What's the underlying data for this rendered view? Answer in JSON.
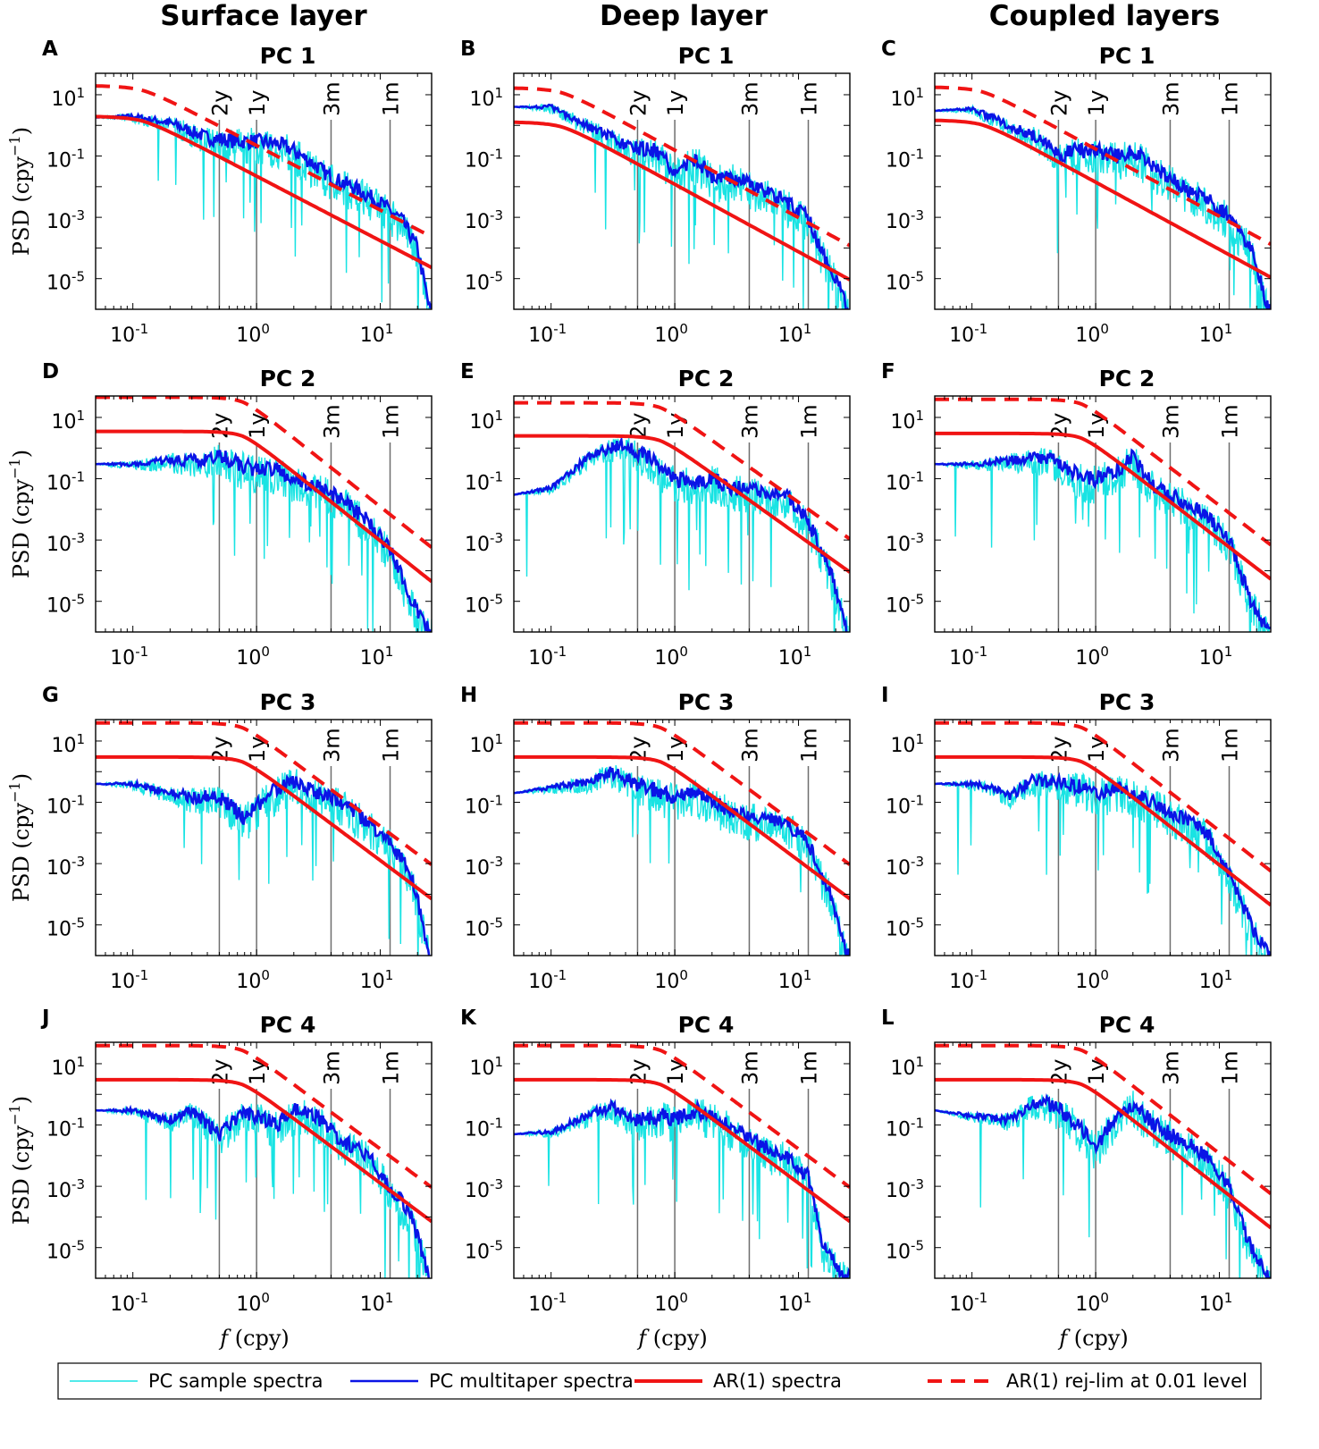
{
  "column_titles": [
    "Surface layer",
    "Deep layer",
    "Coupled layers"
  ],
  "legend": [
    {
      "label": "PC sample spectra",
      "color": "#19e3e3",
      "style": "thin"
    },
    {
      "label": "PC multitaper spectra",
      "color": "#0a14e6",
      "style": "solid"
    },
    {
      "label": "AR(1) spectra",
      "color": "#f01414",
      "style": "thick"
    },
    {
      "label": "AR(1) rej-lim at 0.01 level",
      "color": "#f01414",
      "style": "dashed"
    }
  ],
  "chart_data": {
    "type": "line",
    "xscale": "log",
    "yscale": "log",
    "xlim": [
      0.05,
      26
    ],
    "ylim": [
      1e-06,
      50
    ],
    "xlabel": "f (cpy)",
    "ylabel": "PSD (cpy^-1)",
    "xticks": [
      {
        "value": 0.1,
        "label": "10",
        "exp": "-1"
      },
      {
        "value": 1,
        "label": "10",
        "exp": "0"
      },
      {
        "value": 10,
        "label": "10",
        "exp": "1"
      }
    ],
    "yticks": [
      {
        "value": 10,
        "label": "10",
        "exp": "1"
      },
      {
        "value": 0.1,
        "label": "10",
        "exp": "-1"
      },
      {
        "value": 0.001,
        "label": "10",
        "exp": "-3"
      },
      {
        "value": 1e-05,
        "label": "10",
        "exp": "-5"
      }
    ],
    "period_markers": [
      {
        "label": "2y",
        "f": 0.5
      },
      {
        "label": "1y",
        "f": 1.0
      },
      {
        "label": "3m",
        "f": 4.0
      },
      {
        "label": "1m",
        "f": 12.0
      }
    ],
    "panels": [
      {
        "letter": "A",
        "title": "PC 1",
        "ar1_lowfreq": 2.0,
        "ar1_r": 0.05,
        "ar1_at_25": 2.5e-05,
        "lim_ratio": 10,
        "multitaper": [
          [
            0.05,
            1.8
          ],
          [
            0.1,
            2
          ],
          [
            0.2,
            1.2
          ],
          [
            0.4,
            0.4
          ],
          [
            0.7,
            0.3
          ],
          [
            1,
            0.3
          ],
          [
            1.5,
            0.25
          ],
          [
            2,
            0.15
          ],
          [
            3,
            0.05
          ],
          [
            4,
            0.02
          ],
          [
            6,
            0.01
          ],
          [
            10,
            0.003
          ],
          [
            15,
            0.0008
          ],
          [
            20,
            0.0001
          ],
          [
            25,
            1e-06
          ]
        ],
        "sample_scatter": 0.9
      },
      {
        "letter": "B",
        "title": "PC 1",
        "ar1_lowfreq": 1.3,
        "ar1_r": 0.05,
        "ar1_at_25": 1e-05,
        "lim_ratio": 13,
        "multitaper": [
          [
            0.05,
            4
          ],
          [
            0.1,
            4
          ],
          [
            0.2,
            1
          ],
          [
            0.4,
            0.2
          ],
          [
            0.7,
            0.15
          ],
          [
            1,
            0.03
          ],
          [
            1.5,
            0.08
          ],
          [
            2,
            0.02
          ],
          [
            3,
            0.02
          ],
          [
            5,
            0.008
          ],
          [
            8,
            0.003
          ],
          [
            12,
            0.001
          ],
          [
            15,
            0.0001
          ],
          [
            20,
            1e-05
          ],
          [
            25,
            1e-06
          ]
        ],
        "sample_scatter": 0.9
      },
      {
        "letter": "C",
        "title": "PC 1",
        "ar1_lowfreq": 1.5,
        "ar1_r": 0.05,
        "ar1_at_25": 1.2e-05,
        "lim_ratio": 12,
        "multitaper": [
          [
            0.05,
            3
          ],
          [
            0.1,
            3.5
          ],
          [
            0.2,
            1
          ],
          [
            0.4,
            0.3
          ],
          [
            0.5,
            0.1
          ],
          [
            0.7,
            0.15
          ],
          [
            1,
            0.15
          ],
          [
            1.5,
            0.1
          ],
          [
            2,
            0.15
          ],
          [
            3,
            0.04
          ],
          [
            5,
            0.01
          ],
          [
            8,
            0.004
          ],
          [
            12,
            0.001
          ],
          [
            18,
            0.0001
          ],
          [
            25,
            1e-06
          ]
        ],
        "sample_scatter": 0.9
      },
      {
        "letter": "D",
        "title": "PC 2",
        "ar1_lowfreq": 3.5,
        "ar1_r": 0.3,
        "ar1_at_25": 5e-05,
        "lim_ratio": 13,
        "multitaper": [
          [
            0.05,
            0.3
          ],
          [
            0.1,
            0.3
          ],
          [
            0.2,
            0.4
          ],
          [
            0.4,
            0.4
          ],
          [
            0.5,
            0.6
          ],
          [
            0.7,
            0.3
          ],
          [
            1,
            0.2
          ],
          [
            1.5,
            0.2
          ],
          [
            2,
            0.1
          ],
          [
            3,
            0.06
          ],
          [
            5,
            0.02
          ],
          [
            8,
            0.004
          ],
          [
            12,
            0.0005
          ],
          [
            18,
            1e-05
          ],
          [
            25,
            1e-06
          ]
        ],
        "sample_scatter": 0.9
      },
      {
        "letter": "E",
        "title": "PC 2",
        "ar1_lowfreq": 2.5,
        "ar1_r": 0.3,
        "ar1_at_25": 0.0001,
        "lim_ratio": 12,
        "multitaper": [
          [
            0.05,
            0.03
          ],
          [
            0.1,
            0.05
          ],
          [
            0.2,
            0.5
          ],
          [
            0.3,
            1
          ],
          [
            0.4,
            1.2
          ],
          [
            0.6,
            0.5
          ],
          [
            1,
            0.1
          ],
          [
            1.5,
            0.08
          ],
          [
            2,
            0.1
          ],
          [
            3,
            0.05
          ],
          [
            5,
            0.04
          ],
          [
            8,
            0.03
          ],
          [
            12,
            0.004
          ],
          [
            18,
            0.0001
          ],
          [
            25,
            1e-06
          ]
        ],
        "sample_scatter": 0.9
      },
      {
        "letter": "F",
        "title": "PC 2",
        "ar1_lowfreq": 3,
        "ar1_r": 0.3,
        "ar1_at_25": 6e-05,
        "lim_ratio": 13,
        "multitaper": [
          [
            0.05,
            0.3
          ],
          [
            0.1,
            0.3
          ],
          [
            0.2,
            0.4
          ],
          [
            0.4,
            0.5
          ],
          [
            0.6,
            0.2
          ],
          [
            0.8,
            0.1
          ],
          [
            1,
            0.1
          ],
          [
            1.5,
            0.2
          ],
          [
            2,
            0.5
          ],
          [
            3,
            0.05
          ],
          [
            5,
            0.02
          ],
          [
            8,
            0.006
          ],
          [
            12,
            0.001
          ],
          [
            18,
            1e-05
          ],
          [
            25,
            1e-06
          ]
        ],
        "sample_scatter": 0.9
      },
      {
        "letter": "G",
        "title": "PC 3",
        "ar1_lowfreq": 3,
        "ar1_r": 0.3,
        "ar1_at_25": 8e-05,
        "lim_ratio": 13,
        "multitaper": [
          [
            0.05,
            0.4
          ],
          [
            0.1,
            0.4
          ],
          [
            0.2,
            0.2
          ],
          [
            0.3,
            0.15
          ],
          [
            0.5,
            0.15
          ],
          [
            0.8,
            0.03
          ],
          [
            1,
            0.08
          ],
          [
            1.5,
            0.3
          ],
          [
            2,
            0.5
          ],
          [
            3,
            0.2
          ],
          [
            5,
            0.1
          ],
          [
            8,
            0.02
          ],
          [
            12,
            0.005
          ],
          [
            18,
            0.0004
          ],
          [
            25,
            1e-06
          ]
        ],
        "sample_scatter": 0.9
      },
      {
        "letter": "H",
        "title": "PC 3",
        "ar1_lowfreq": 3,
        "ar1_r": 0.3,
        "ar1_at_25": 8e-05,
        "lim_ratio": 13,
        "multitaper": [
          [
            0.05,
            0.2
          ],
          [
            0.1,
            0.3
          ],
          [
            0.2,
            0.5
          ],
          [
            0.3,
            1
          ],
          [
            0.5,
            0.4
          ],
          [
            0.8,
            0.2
          ],
          [
            1,
            0.15
          ],
          [
            1.5,
            0.2
          ],
          [
            2,
            0.1
          ],
          [
            3,
            0.05
          ],
          [
            5,
            0.03
          ],
          [
            8,
            0.02
          ],
          [
            12,
            0.005
          ],
          [
            18,
            0.0001
          ],
          [
            25,
            1e-06
          ]
        ],
        "sample_scatter": 0.9
      },
      {
        "letter": "I",
        "title": "PC 3",
        "ar1_lowfreq": 3,
        "ar1_r": 0.3,
        "ar1_at_25": 5e-05,
        "lim_ratio": 13,
        "multitaper": [
          [
            0.05,
            0.4
          ],
          [
            0.1,
            0.4
          ],
          [
            0.15,
            0.3
          ],
          [
            0.2,
            0.15
          ],
          [
            0.3,
            0.5
          ],
          [
            0.5,
            0.5
          ],
          [
            0.8,
            0.3
          ],
          [
            1,
            0.2
          ],
          [
            1.5,
            0.3
          ],
          [
            2,
            0.2
          ],
          [
            3,
            0.1
          ],
          [
            5,
            0.03
          ],
          [
            8,
            0.01
          ],
          [
            12,
            0.0005
          ],
          [
            18,
            1e-05
          ],
          [
            25,
            1e-06
          ]
        ],
        "sample_scatter": 0.9
      },
      {
        "letter": "J",
        "title": "PC 4",
        "ar1_lowfreq": 3,
        "ar1_r": 0.3,
        "ar1_at_25": 8e-05,
        "lim_ratio": 13,
        "multitaper": [
          [
            0.05,
            0.3
          ],
          [
            0.1,
            0.3
          ],
          [
            0.2,
            0.15
          ],
          [
            0.3,
            0.3
          ],
          [
            0.5,
            0.05
          ],
          [
            0.7,
            0.2
          ],
          [
            1,
            0.2
          ],
          [
            1.5,
            0.1
          ],
          [
            2,
            0.3
          ],
          [
            3,
            0.2
          ],
          [
            5,
            0.03
          ],
          [
            8,
            0.01
          ],
          [
            12,
            0.001
          ],
          [
            18,
            0.0001
          ],
          [
            25,
            1e-06
          ]
        ],
        "sample_scatter": 0.9
      },
      {
        "letter": "K",
        "title": "PC 4",
        "ar1_lowfreq": 3,
        "ar1_r": 0.3,
        "ar1_at_25": 8e-05,
        "lim_ratio": 13,
        "multitaper": [
          [
            0.05,
            0.05
          ],
          [
            0.1,
            0.06
          ],
          [
            0.2,
            0.2
          ],
          [
            0.3,
            0.4
          ],
          [
            0.5,
            0.15
          ],
          [
            0.8,
            0.2
          ],
          [
            1,
            0.15
          ],
          [
            1.5,
            0.3
          ],
          [
            2,
            0.2
          ],
          [
            3,
            0.08
          ],
          [
            5,
            0.02
          ],
          [
            8,
            0.01
          ],
          [
            12,
            0.002
          ],
          [
            16,
            1e-05
          ],
          [
            25,
            1e-06
          ]
        ],
        "sample_scatter": 0.9
      },
      {
        "letter": "L",
        "title": "PC 4",
        "ar1_lowfreq": 3,
        "ar1_r": 0.3,
        "ar1_at_25": 5e-05,
        "lim_ratio": 13,
        "multitaper": [
          [
            0.05,
            0.3
          ],
          [
            0.1,
            0.2
          ],
          [
            0.2,
            0.15
          ],
          [
            0.3,
            0.5
          ],
          [
            0.4,
            0.5
          ],
          [
            0.6,
            0.2
          ],
          [
            0.8,
            0.06
          ],
          [
            1,
            0.02
          ],
          [
            1.3,
            0.1
          ],
          [
            2,
            0.5
          ],
          [
            3,
            0.1
          ],
          [
            5,
            0.03
          ],
          [
            8,
            0.01
          ],
          [
            12,
            0.001
          ],
          [
            18,
            1e-05
          ],
          [
            25,
            1e-06
          ]
        ],
        "sample_scatter": 0.9
      }
    ]
  }
}
